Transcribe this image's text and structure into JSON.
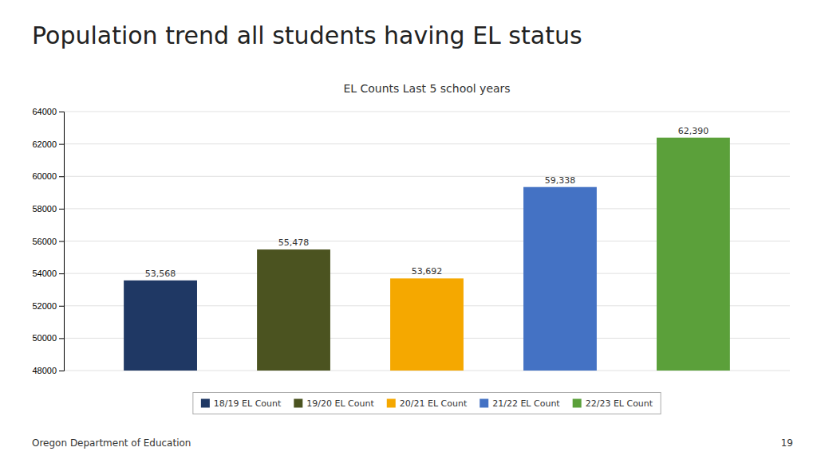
{
  "chart_data": {
    "type": "bar",
    "title": "Population trend all students having EL status",
    "subtitle": "EL Counts Last 5 school years",
    "categories": [
      "18/19 EL Count",
      "19/20 EL Count",
      "20/21 EL Count",
      "21/22 EL Count",
      "22/23 EL Count"
    ],
    "values": [
      53568,
      55478,
      53692,
      59338,
      62390
    ],
    "value_labels": [
      "53,568",
      "55,478",
      "53,692",
      "59,338",
      "62,390"
    ],
    "data_labels": true,
    "colors": [
      "#1F3864",
      "#4B5320",
      "#F5A800",
      "#4472C4",
      "#5BA03A"
    ],
    "ylim": [
      48000,
      64000
    ],
    "yticks": [
      48000,
      50000,
      52000,
      54000,
      56000,
      58000,
      60000,
      62000,
      64000
    ],
    "grid": true,
    "legend": "bottom",
    "tick_labels": "y",
    "annotations": [
      "Oregon Department of Education",
      "19"
    ]
  }
}
